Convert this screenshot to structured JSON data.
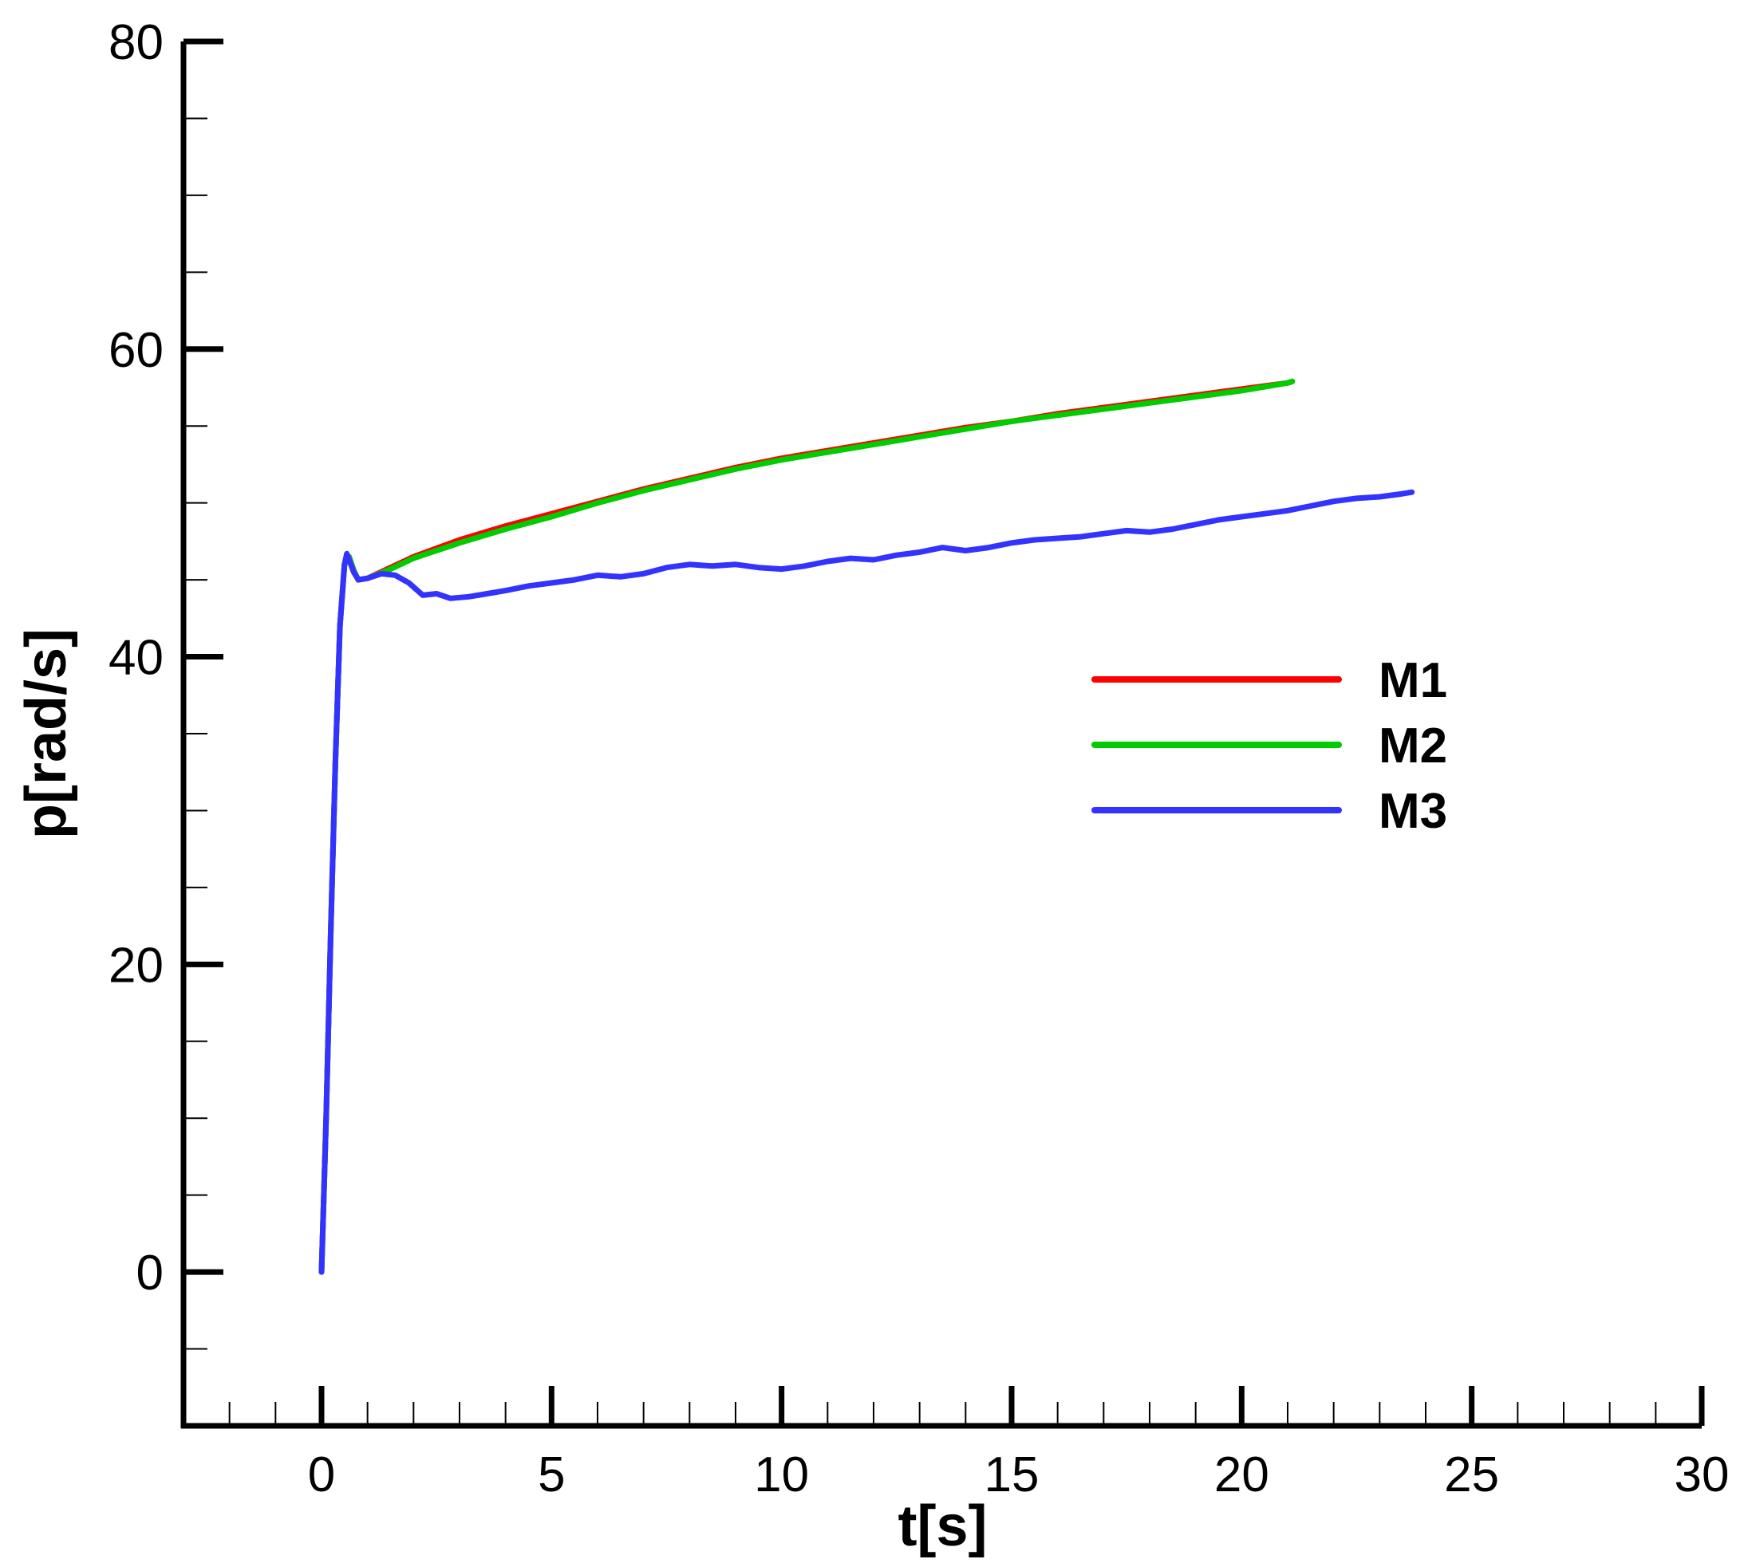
{
  "chart_data": {
    "type": "line",
    "xlabel": "t[s]",
    "ylabel": "p[rad/s]",
    "xlim": [
      -3,
      30
    ],
    "ylim": [
      -10,
      80
    ],
    "x_ticks_major": [
      0,
      5,
      10,
      15,
      20,
      25,
      30
    ],
    "x_ticks_minor_step": 1,
    "y_ticks_major": [
      0,
      20,
      40,
      60,
      80
    ],
    "y_ticks_minor_step": 5,
    "grid": false,
    "legend_position": "center-right",
    "series": [
      {
        "name": "M1",
        "color": "#ff0000",
        "points": [
          [
            0,
            0
          ],
          [
            0.1,
            10
          ],
          [
            0.2,
            22
          ],
          [
            0.3,
            33
          ],
          [
            0.4,
            42
          ],
          [
            0.5,
            46
          ],
          [
            0.6,
            46.5
          ],
          [
            0.7,
            45.6
          ],
          [
            0.8,
            45
          ],
          [
            1,
            45.1
          ],
          [
            1.5,
            45.8
          ],
          [
            2,
            46.5
          ],
          [
            3,
            47.6
          ],
          [
            4,
            48.5
          ],
          [
            5,
            49.3
          ],
          [
            6,
            50.1
          ],
          [
            7,
            50.9
          ],
          [
            8,
            51.6
          ],
          [
            9,
            52.3
          ],
          [
            10,
            52.9
          ],
          [
            11,
            53.4
          ],
          [
            12,
            53.9
          ],
          [
            13,
            54.4
          ],
          [
            14,
            54.9
          ],
          [
            15,
            55.3
          ],
          [
            16,
            55.8
          ],
          [
            17,
            56.2
          ],
          [
            18,
            56.6
          ],
          [
            19,
            57.0
          ],
          [
            20,
            57.4
          ],
          [
            21,
            57.8
          ],
          [
            21.1,
            57.9
          ]
        ]
      },
      {
        "name": "M2",
        "color": "#00cc00",
        "points": [
          [
            0,
            0
          ],
          [
            0.1,
            10
          ],
          [
            0.2,
            22
          ],
          [
            0.3,
            33
          ],
          [
            0.4,
            42
          ],
          [
            0.5,
            46
          ],
          [
            0.6,
            46.5
          ],
          [
            0.7,
            45.6
          ],
          [
            0.8,
            45
          ],
          [
            1,
            45.1
          ],
          [
            1.5,
            45.7
          ],
          [
            2,
            46.4
          ],
          [
            3,
            47.4
          ],
          [
            4,
            48.3
          ],
          [
            5,
            49.1
          ],
          [
            6,
            50.0
          ],
          [
            7,
            50.8
          ],
          [
            8,
            51.5
          ],
          [
            9,
            52.2
          ],
          [
            10,
            52.8
          ],
          [
            11,
            53.3
          ],
          [
            12,
            53.8
          ],
          [
            13,
            54.3
          ],
          [
            14,
            54.8
          ],
          [
            15,
            55.3
          ],
          [
            16,
            55.7
          ],
          [
            17,
            56.1
          ],
          [
            18,
            56.5
          ],
          [
            19,
            56.9
          ],
          [
            20,
            57.3
          ],
          [
            21,
            57.8
          ],
          [
            21.1,
            57.9
          ]
        ]
      },
      {
        "name": "M3",
        "color": "#3333ff",
        "points": [
          [
            0,
            0
          ],
          [
            0.1,
            10
          ],
          [
            0.2,
            22
          ],
          [
            0.3,
            33
          ],
          [
            0.4,
            42
          ],
          [
            0.5,
            46
          ],
          [
            0.55,
            46.7
          ],
          [
            0.6,
            46.3
          ],
          [
            0.7,
            45.5
          ],
          [
            0.8,
            45.0
          ],
          [
            1,
            45.1
          ],
          [
            1.3,
            45.4
          ],
          [
            1.6,
            45.3
          ],
          [
            1.9,
            44.8
          ],
          [
            2.2,
            44.0
          ],
          [
            2.5,
            44.1
          ],
          [
            2.8,
            43.8
          ],
          [
            3.2,
            43.9
          ],
          [
            3.6,
            44.1
          ],
          [
            4,
            44.3
          ],
          [
            4.5,
            44.6
          ],
          [
            5,
            44.8
          ],
          [
            5.5,
            45.0
          ],
          [
            6,
            45.3
          ],
          [
            6.5,
            45.2
          ],
          [
            7,
            45.4
          ],
          [
            7.5,
            45.8
          ],
          [
            8,
            46.0
          ],
          [
            8.5,
            45.9
          ],
          [
            9,
            46.0
          ],
          [
            9.5,
            45.8
          ],
          [
            10,
            45.7
          ],
          [
            10.5,
            45.9
          ],
          [
            11,
            46.2
          ],
          [
            11.5,
            46.4
          ],
          [
            12,
            46.3
          ],
          [
            12.5,
            46.6
          ],
          [
            13,
            46.8
          ],
          [
            13.5,
            47.1
          ],
          [
            14,
            46.9
          ],
          [
            14.5,
            47.1
          ],
          [
            15,
            47.4
          ],
          [
            15.5,
            47.6
          ],
          [
            16,
            47.7
          ],
          [
            16.5,
            47.8
          ],
          [
            17,
            48.0
          ],
          [
            17.5,
            48.2
          ],
          [
            18,
            48.1
          ],
          [
            18.5,
            48.3
          ],
          [
            19,
            48.6
          ],
          [
            19.5,
            48.9
          ],
          [
            20,
            49.1
          ],
          [
            20.5,
            49.3
          ],
          [
            21,
            49.5
          ],
          [
            21.5,
            49.8
          ],
          [
            22,
            50.1
          ],
          [
            22.5,
            50.3
          ],
          [
            23,
            50.4
          ],
          [
            23.5,
            50.6
          ],
          [
            23.7,
            50.7
          ]
        ]
      }
    ]
  }
}
